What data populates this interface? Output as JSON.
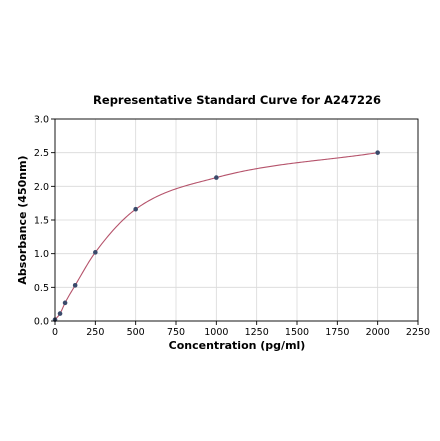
{
  "chart_data": {
    "type": "scatter",
    "title": "Representative Standard Curve for A247226",
    "xlabel": "Concentration (pg/ml)",
    "ylabel": "Absorbance (450nm)",
    "xlim": [
      0,
      2250
    ],
    "ylim": [
      0,
      3.0
    ],
    "x_ticks": [
      "0",
      "250",
      "500",
      "750",
      "1000",
      "1250",
      "1500",
      "1750",
      "2000",
      "2250"
    ],
    "y_ticks": [
      "0.0",
      "0.5",
      "1.0",
      "1.5",
      "2.0",
      "2.5",
      "3.0"
    ],
    "grid": true,
    "series": [
      {
        "points": [
          {
            "x": 0,
            "y": 0.02
          },
          {
            "x": 31.25,
            "y": 0.11
          },
          {
            "x": 62.5,
            "y": 0.27
          },
          {
            "x": 125,
            "y": 0.53
          },
          {
            "x": 250,
            "y": 1.02
          },
          {
            "x": 500,
            "y": 1.66
          },
          {
            "x": 1000,
            "y": 2.13
          },
          {
            "x": 2000,
            "y": 2.5
          }
        ],
        "fit_curve": "4PL",
        "marker_color": "#3a4a6b",
        "curve_color": "#b5536b"
      }
    ]
  }
}
